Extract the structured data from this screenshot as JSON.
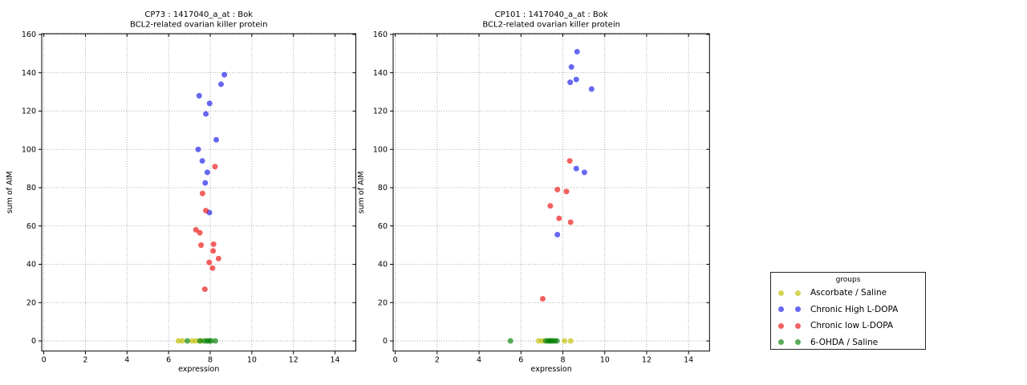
{
  "figure": {
    "background": "#ffffff"
  },
  "legend": {
    "title": "groups",
    "entries": [
      {
        "label": "Ascorbate / Saline",
        "color": "rgba(191,191,0,0.65)"
      },
      {
        "label": "Chronic High L-DOPA",
        "color": "rgba(10,10,235,0.62)"
      },
      {
        "label": "Chronic low L-DOPA",
        "color": "rgba(235,10,10,0.65)"
      },
      {
        "label": "6-OHDA / Saline",
        "color": "rgba(0,128,0,0.65)"
      }
    ]
  },
  "chart_data": [
    {
      "type": "scatter",
      "title_line1": "CP73 : 1417040_a_at : Bok",
      "title_line2": "BCL2-related ovarian killer protein",
      "xlabel": "expression",
      "ylabel": "sum of AIM",
      "xlim": [
        -0.1,
        15.0
      ],
      "ylim": [
        -5.3,
        160.4
      ],
      "xticks": [
        0,
        2,
        4,
        6,
        8,
        10,
        12,
        14
      ],
      "yticks": [
        0,
        20,
        40,
        60,
        80,
        100,
        120,
        140,
        160
      ],
      "grid": true,
      "series": [
        {
          "name": "Ascorbate / Saline",
          "points": [
            [
              6.47,
              0
            ],
            [
              6.66,
              0
            ],
            [
              7.13,
              0
            ],
            [
              7.3,
              0
            ],
            [
              7.55,
              0
            ]
          ]
        },
        {
          "name": "Chronic High L-DOPA",
          "points": [
            [
              8.68,
              139
            ],
            [
              8.52,
              134
            ],
            [
              7.47,
              128
            ],
            [
              7.97,
              124
            ],
            [
              7.79,
              118.5
            ],
            [
              8.29,
              105
            ],
            [
              7.42,
              100
            ],
            [
              7.62,
              94
            ],
            [
              7.86,
              88
            ],
            [
              7.76,
              82.5
            ],
            [
              7.96,
              67
            ]
          ]
        },
        {
          "name": "Chronic low L-DOPA",
          "points": [
            [
              8.23,
              91
            ],
            [
              7.63,
              77
            ],
            [
              7.79,
              68
            ],
            [
              7.31,
              58
            ],
            [
              7.5,
              56.5
            ],
            [
              7.56,
              50
            ],
            [
              8.16,
              50.5
            ],
            [
              8.14,
              47
            ],
            [
              8.4,
              43
            ],
            [
              7.95,
              41
            ],
            [
              8.11,
              38
            ],
            [
              7.74,
              27
            ]
          ]
        },
        {
          "name": "6-OHDA / Saline",
          "points": [
            [
              6.9,
              0
            ],
            [
              7.5,
              0
            ],
            [
              7.72,
              0
            ],
            [
              7.85,
              0
            ],
            [
              7.95,
              0
            ],
            [
              8.05,
              0
            ],
            [
              8.25,
              0
            ]
          ]
        }
      ]
    },
    {
      "type": "scatter",
      "title_line1": "CP101 : 1417040_a_at : Bok",
      "title_line2": "BCL2-related ovarian killer protein",
      "xlabel": "expression",
      "ylabel": "sum of AIM",
      "xlim": [
        -0.1,
        15.0
      ],
      "ylim": [
        -5.3,
        160.4
      ],
      "xticks": [
        0,
        2,
        4,
        6,
        8,
        10,
        12,
        14
      ],
      "yticks": [
        0,
        20,
        40,
        60,
        80,
        100,
        120,
        140,
        160
      ],
      "grid": true,
      "series": [
        {
          "name": "Ascorbate / Saline",
          "points": [
            [
              6.85,
              0
            ],
            [
              7.02,
              0
            ],
            [
              8.08,
              0
            ],
            [
              8.37,
              0
            ]
          ]
        },
        {
          "name": "Chronic High L-DOPA",
          "points": [
            [
              8.68,
              151
            ],
            [
              8.41,
              143
            ],
            [
              8.35,
              135
            ],
            [
              8.64,
              136.5
            ],
            [
              9.37,
              131.5
            ],
            [
              8.64,
              90
            ],
            [
              9.03,
              88
            ],
            [
              7.74,
              55.5
            ]
          ]
        },
        {
          "name": "Chronic low L-DOPA",
          "points": [
            [
              8.33,
              94
            ],
            [
              7.74,
              79
            ],
            [
              8.17,
              78
            ],
            [
              7.4,
              70.5
            ],
            [
              7.82,
              64
            ],
            [
              8.37,
              62
            ],
            [
              7.04,
              22
            ]
          ]
        },
        {
          "name": "6-OHDA / Saline",
          "points": [
            [
              5.5,
              0
            ],
            [
              7.18,
              0
            ],
            [
              7.28,
              0
            ],
            [
              7.36,
              0
            ],
            [
              7.44,
              0
            ],
            [
              7.52,
              0
            ],
            [
              7.62,
              0
            ],
            [
              7.72,
              0
            ]
          ]
        }
      ]
    }
  ]
}
